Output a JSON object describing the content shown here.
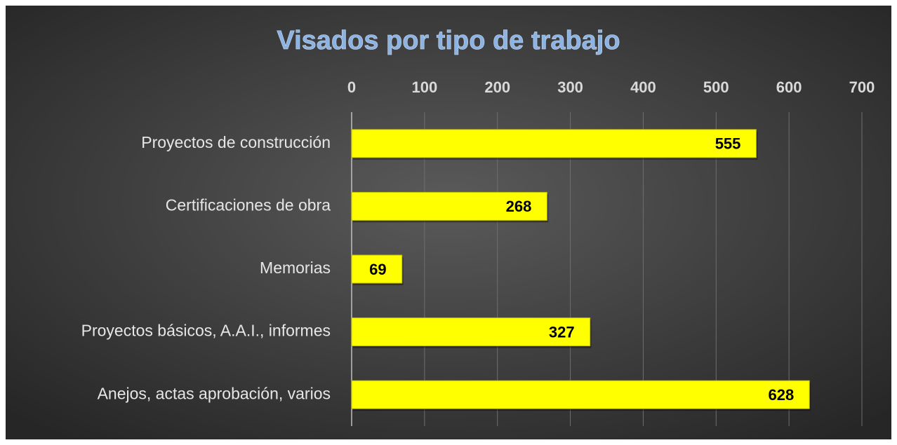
{
  "chart_data": {
    "type": "bar",
    "orientation": "horizontal",
    "title": "Visados por tipo de trabajo",
    "categories": [
      "Proyectos de construcción",
      "Certificaciones de obra",
      "Memorias",
      "Proyectos básicos, A.A.I., informes",
      "Anejos, actas aprobación, varios"
    ],
    "values": [
      555,
      268,
      69,
      327,
      628
    ],
    "color": "#ffff00",
    "xlim": [
      0,
      700
    ],
    "xticks": [
      0,
      100,
      200,
      300,
      400,
      500,
      600,
      700
    ],
    "grid": true
  }
}
